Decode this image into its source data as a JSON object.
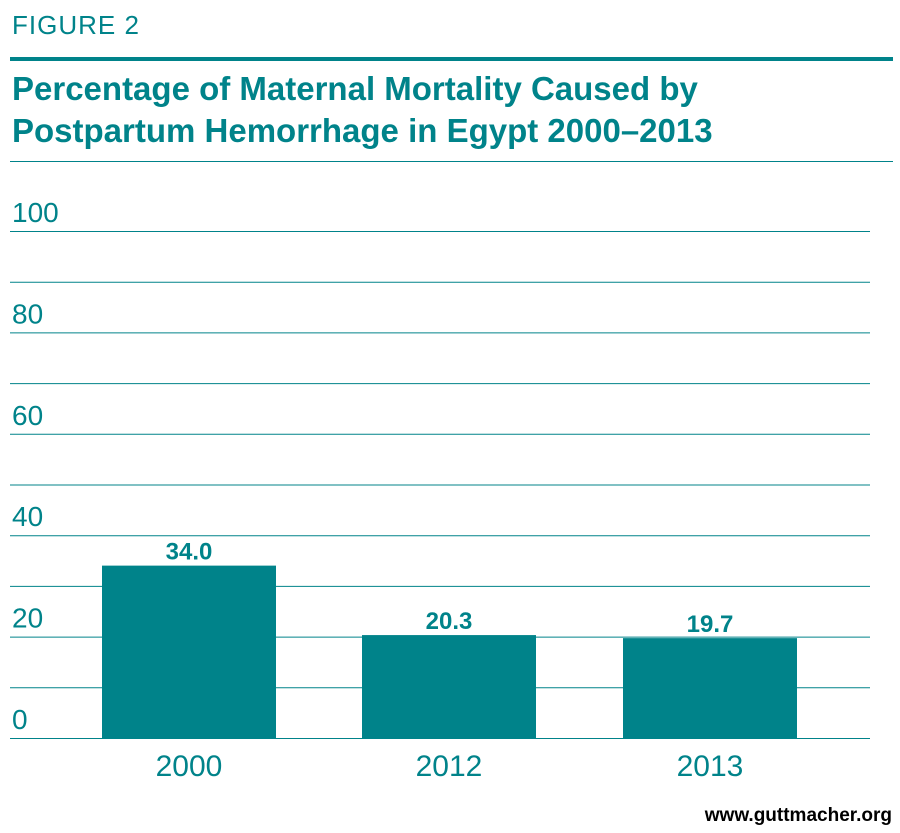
{
  "figure_label": "FIGURE 2",
  "title": "Percentage of Maternal Mortality Caused by Postpartum Hemorrhage in Egypt 2000–2013",
  "source": "www.guttmacher.org",
  "colors": {
    "accent": "#00838a",
    "bar": "#00838a",
    "grid": "#00838a"
  },
  "chart_data": {
    "type": "bar",
    "title": "Percentage of Maternal Mortality Caused by Postpartum Hemorrhage in Egypt 2000–2013",
    "categories": [
      "2000",
      "2012",
      "2013"
    ],
    "values": [
      34.0,
      20.3,
      19.7
    ],
    "value_labels": [
      "34.0",
      "20.3",
      "19.7"
    ],
    "ylim": [
      0,
      100
    ],
    "yticks": [
      0,
      20,
      40,
      60,
      80,
      100
    ],
    "minor_gridlines": [
      10,
      30,
      50,
      70,
      90
    ],
    "grid": true,
    "xlabel": "",
    "ylabel": ""
  }
}
